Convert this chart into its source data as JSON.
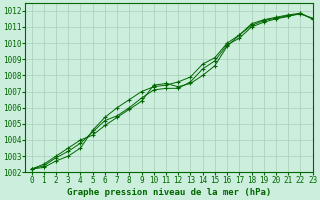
{
  "title": "Graphe pression niveau de la mer (hPa)",
  "background_color": "#cceedd",
  "grid_color": "#aaccbb",
  "line_color": "#006600",
  "xlim": [
    -0.5,
    23
  ],
  "ylim": [
    1002,
    1012.5
  ],
  "xticks": [
    0,
    1,
    2,
    3,
    4,
    5,
    6,
    7,
    8,
    9,
    10,
    11,
    12,
    13,
    14,
    15,
    16,
    17,
    18,
    19,
    20,
    21,
    22,
    23
  ],
  "yticks": [
    1002,
    1003,
    1004,
    1005,
    1006,
    1007,
    1008,
    1009,
    1010,
    1011,
    1012
  ],
  "line1_x": [
    0,
    1,
    2,
    3,
    4,
    5,
    6,
    7,
    8,
    9,
    10,
    11,
    12,
    13,
    14,
    15,
    16,
    17,
    18,
    19,
    20,
    21,
    22,
    23
  ],
  "line1_y": [
    1002.2,
    1002.5,
    1003.0,
    1003.5,
    1004.0,
    1004.3,
    1004.9,
    1005.4,
    1005.9,
    1006.4,
    1007.4,
    1007.5,
    1007.3,
    1007.5,
    1008.0,
    1008.6,
    1009.8,
    1010.5,
    1011.1,
    1011.4,
    1011.55,
    1011.7,
    1011.8,
    1011.55
  ],
  "line2_x": [
    0,
    1,
    2,
    3,
    4,
    5,
    6,
    7,
    8,
    9,
    10,
    11,
    12,
    13,
    14,
    15,
    16,
    17,
    18,
    19,
    20,
    21,
    22,
    23
  ],
  "line2_y": [
    1002.2,
    1002.4,
    1002.9,
    1003.3,
    1003.8,
    1004.5,
    1005.2,
    1005.5,
    1006.0,
    1006.6,
    1007.1,
    1007.2,
    1007.2,
    1007.6,
    1008.4,
    1008.9,
    1009.9,
    1010.3,
    1011.0,
    1011.3,
    1011.5,
    1011.65,
    1011.85,
    1011.5
  ],
  "line3_x": [
    0,
    1,
    2,
    3,
    4,
    5,
    6,
    7,
    8,
    9,
    10,
    11,
    12,
    13,
    14,
    15,
    16,
    17,
    18,
    19,
    20,
    21,
    22,
    23
  ],
  "line3_y": [
    1002.2,
    1002.3,
    1002.7,
    1003.0,
    1003.5,
    1004.6,
    1005.4,
    1006.0,
    1006.5,
    1007.0,
    1007.3,
    1007.4,
    1007.6,
    1007.9,
    1008.7,
    1009.1,
    1010.0,
    1010.5,
    1011.2,
    1011.45,
    1011.6,
    1011.75,
    1011.85,
    1011.5
  ],
  "tick_fontsize": 5.5,
  "xlabel_fontsize": 6.5
}
